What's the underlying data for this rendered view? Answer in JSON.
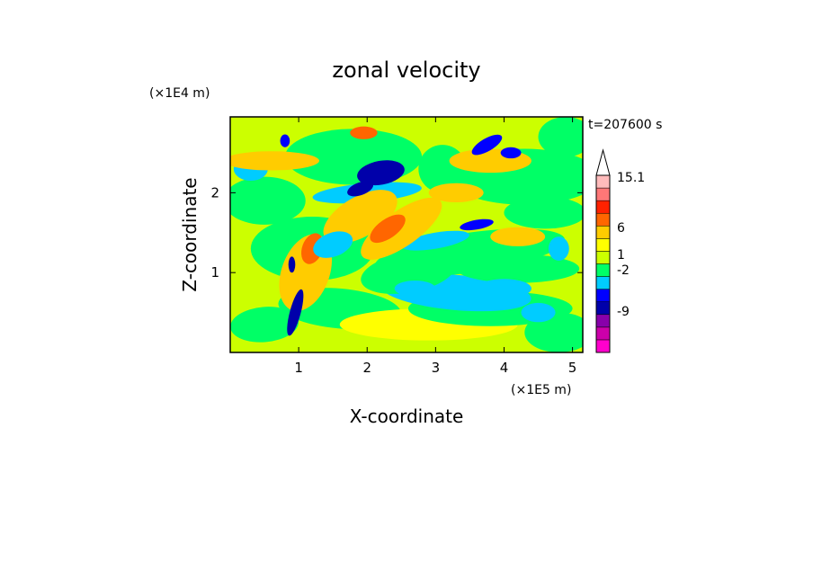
{
  "chart_data": {
    "type": "heatmap",
    "title": "zonal velocity",
    "xlabel": "X-coordinate",
    "ylabel": "Z-coordinate",
    "x_unit": "(×1E5 m)",
    "y_unit": "(×1E4 m)",
    "time_label": "t=207600 s",
    "xlim": [
      0,
      5.15
    ],
    "ylim": [
      0,
      2.95
    ],
    "x_ticks": [
      "1",
      "2",
      "3",
      "4",
      "5"
    ],
    "x_tick_values": [
      1,
      2,
      3,
      4,
      5
    ],
    "y_ticks": [
      "1",
      "2"
    ],
    "y_tick_values": [
      1,
      2
    ],
    "colorbar": {
      "labels": [
        "15.1",
        "6",
        "1",
        "-2",
        "-9"
      ],
      "label_values": [
        15.1,
        6,
        1,
        -2,
        -9
      ],
      "colors": [
        "#ff00cc",
        "#cc00aa",
        "#8800aa",
        "#0000aa",
        "#0000ff",
        "#00ccff",
        "#00ff66",
        "#ccff00",
        "#ffff00",
        "#ffcc00",
        "#ff6600",
        "#ff2200",
        "#ff7777",
        "#ffbbbb"
      ],
      "extend_max": true
    },
    "field_colors": {
      "background": "#ccff00",
      "regions": [
        "#00ff66",
        "#00ccff",
        "#ffff00",
        "#ffcc00",
        "#ff6600",
        "#ff2200",
        "#0000aa",
        "#0000ff"
      ]
    }
  }
}
